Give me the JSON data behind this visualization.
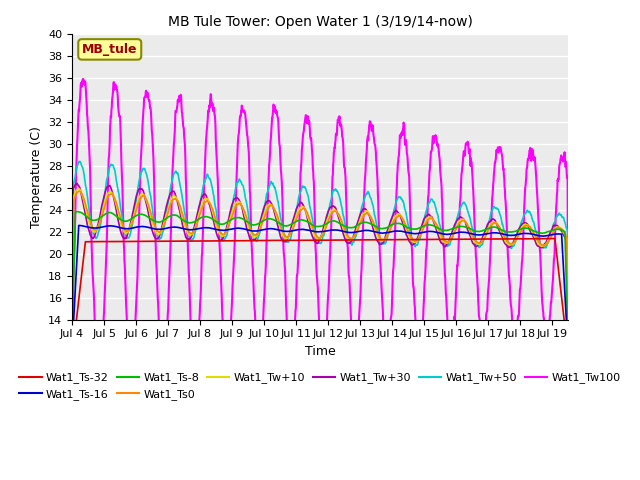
{
  "title": "MB Tule Tower: Open Water 1 (3/19/14-now)",
  "xlabel": "Time",
  "ylabel": "Temperature (C)",
  "ylim": [
    14,
    40
  ],
  "yticks": [
    14,
    16,
    18,
    20,
    22,
    24,
    26,
    28,
    30,
    32,
    34,
    36,
    38,
    40
  ],
  "xlim_days": [
    0.0,
    15.5
  ],
  "x_tick_labels": [
    "Jul 4",
    "Jul 5",
    "Jul 6",
    "Jul 7",
    "Jul 8",
    "Jul 9",
    "Jul 10",
    "Jul 11",
    "Jul 12",
    "Jul 13",
    "Jul 14",
    "Jul 15",
    "Jul 16",
    "Jul 17",
    "Jul 18",
    "Jul 19"
  ],
  "x_tick_pos": [
    0,
    1,
    2,
    3,
    4,
    5,
    6,
    7,
    8,
    9,
    10,
    11,
    12,
    13,
    14,
    15
  ],
  "series": {
    "Wat1_Ts-32": {
      "color": "#dd0000",
      "lw": 1.2
    },
    "Wat1_Ts-16": {
      "color": "#0000cc",
      "lw": 1.2
    },
    "Wat1_Ts-8": {
      "color": "#00bb00",
      "lw": 1.2
    },
    "Wat1_Ts0": {
      "color": "#ff8800",
      "lw": 1.2
    },
    "Wat1_Tw+10": {
      "color": "#dddd00",
      "lw": 1.2
    },
    "Wat1_Tw+30": {
      "color": "#aa00aa",
      "lw": 1.2
    },
    "Wat1_Tw+50": {
      "color": "#00cccc",
      "lw": 1.2
    },
    "Wat1_Tw100": {
      "color": "#ff00ff",
      "lw": 1.5
    }
  },
  "legend_box": {
    "text": "MB_tule",
    "text_color": "#990000",
    "bg_color": "#ffff99",
    "border_color": "#888800",
    "fontsize": 9
  },
  "bg_color": "#ebebeb",
  "grid_color": "#ffffff",
  "title_fontsize": 10,
  "axis_fontsize": 9,
  "tick_fontsize": 8
}
